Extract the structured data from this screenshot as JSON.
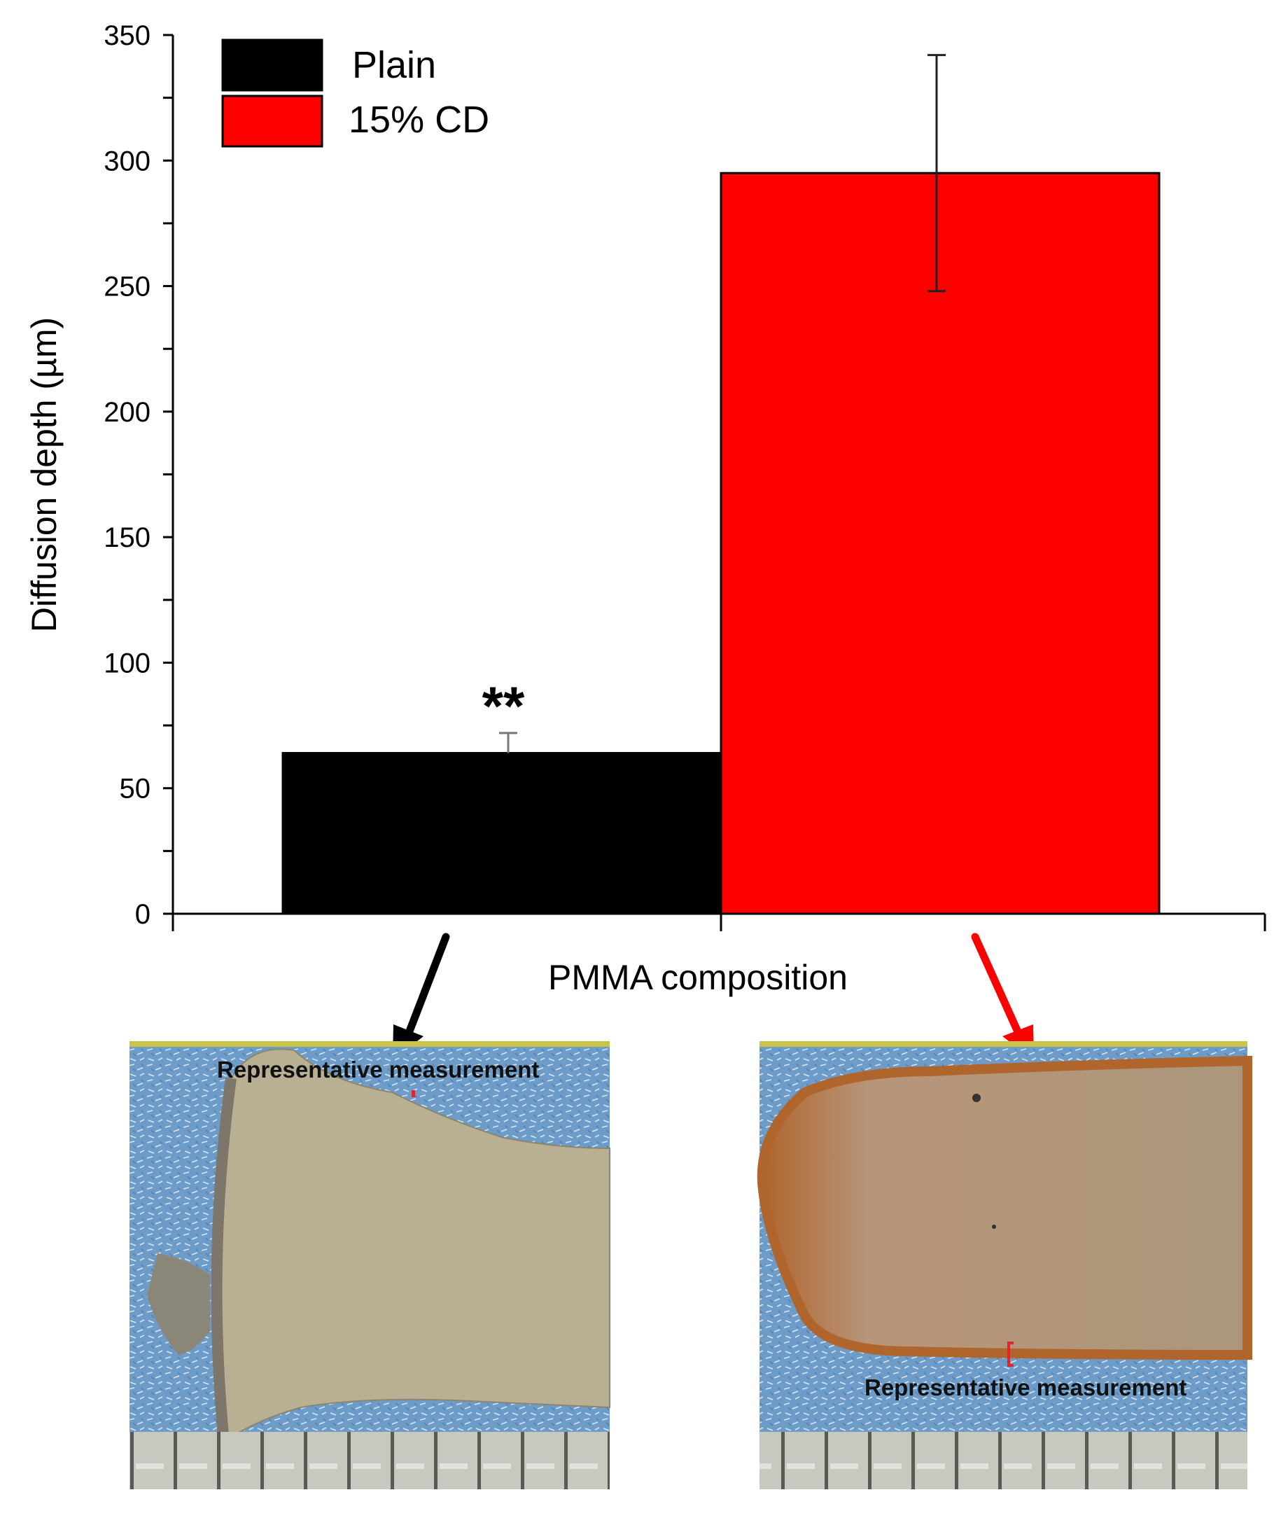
{
  "chart_data": {
    "type": "bar",
    "title": "",
    "xlabel": "PMMA composition",
    "ylabel": "Diffusion depth (µm)",
    "ylim": [
      0,
      350
    ],
    "yticks": [
      "0",
      "50",
      "100",
      "150",
      "200",
      "250",
      "300",
      "350"
    ],
    "legend_position": "top-left",
    "grid": false,
    "series": [
      {
        "name": "Plain",
        "value": 64,
        "error": 8,
        "color": "#000000",
        "annotation": "**"
      },
      {
        "name": "15% CD",
        "value": 295,
        "error": 47,
        "color": "#ff0000",
        "annotation": ""
      }
    ]
  },
  "photos": {
    "left": {
      "label": "Representative measurement",
      "arrow_color": "#000000"
    },
    "right": {
      "label": "Representative measurement",
      "arrow_color": "#ff0000"
    }
  }
}
